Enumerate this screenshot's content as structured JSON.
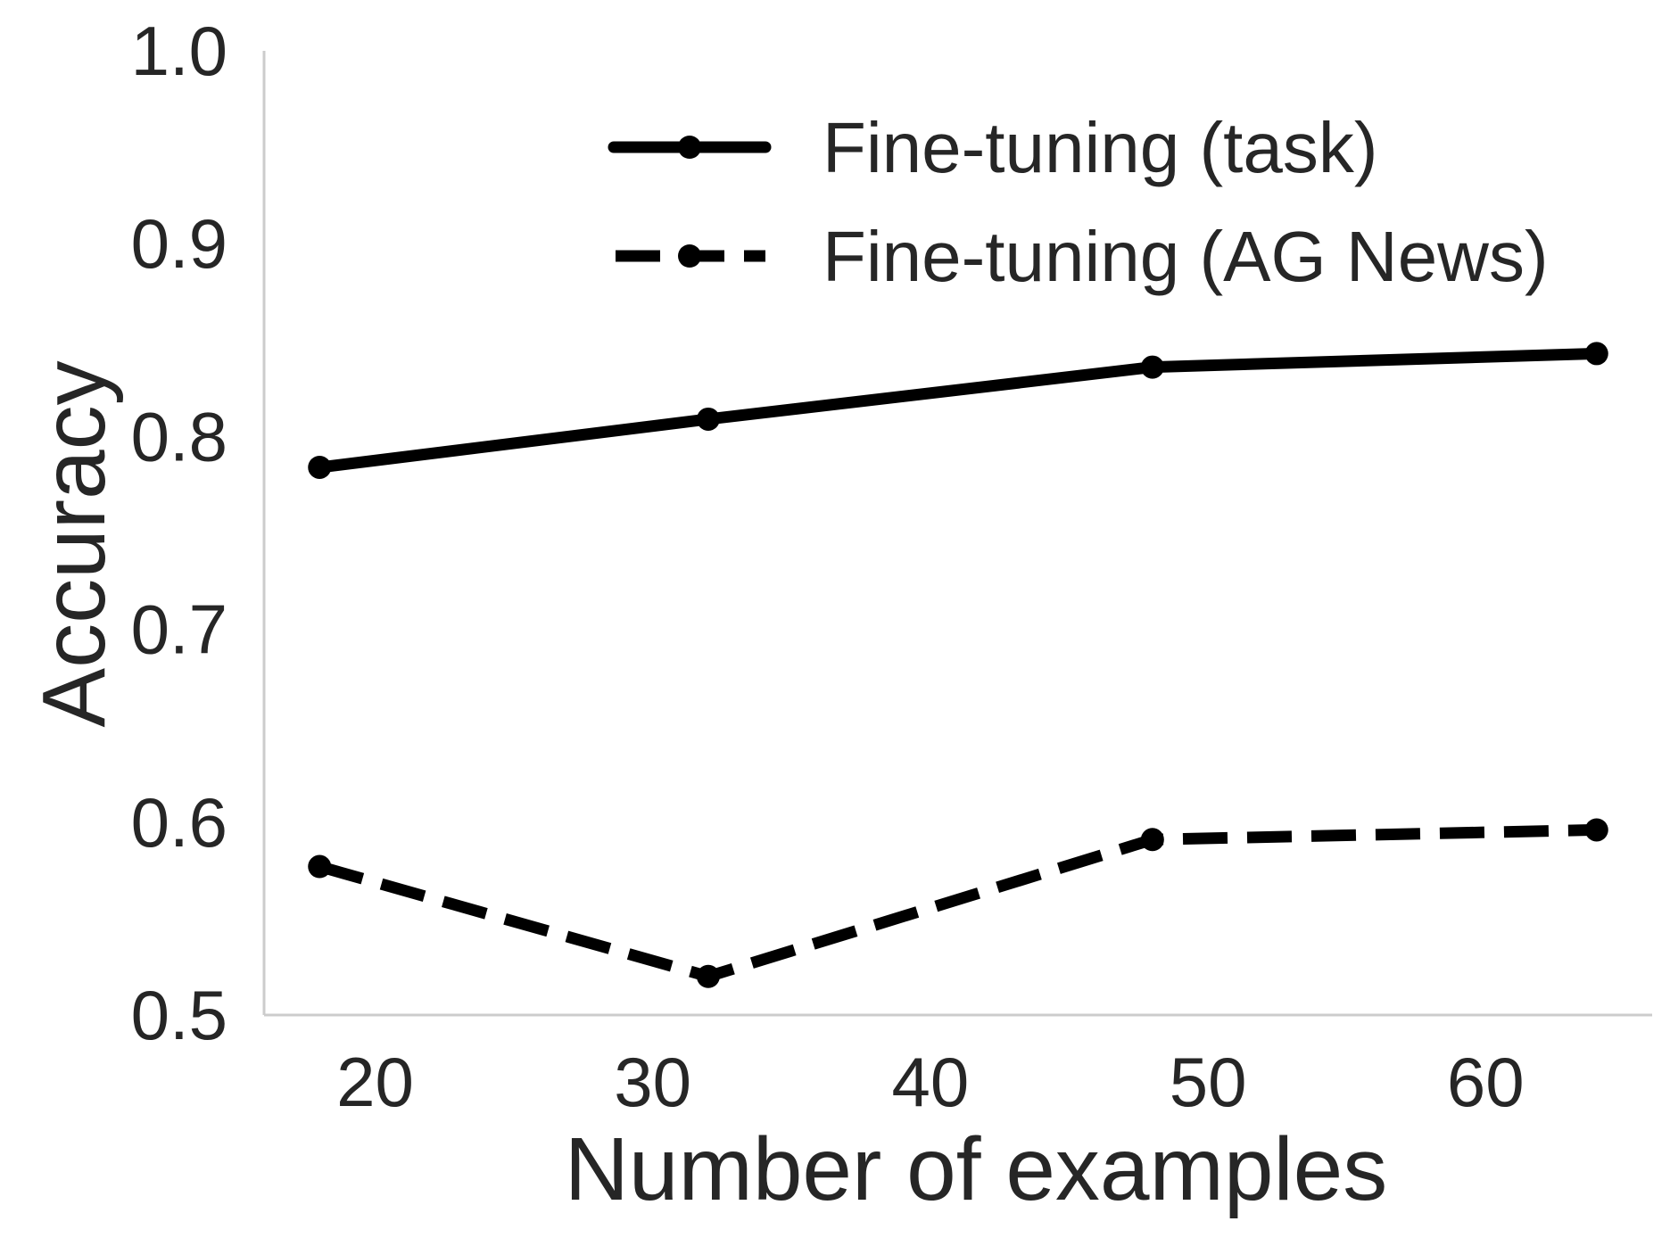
{
  "chart_data": {
    "type": "line",
    "title": "",
    "xlabel": "Number of examples",
    "ylabel": "Accuracy",
    "xlim": [
      16,
      66
    ],
    "ylim": [
      0.5,
      1.0
    ],
    "xticks": [
      20,
      30,
      40,
      50,
      60
    ],
    "yticks": [
      0.5,
      0.6,
      0.7,
      0.8,
      0.9,
      1.0
    ],
    "xtick_labels": [
      "20",
      "30",
      "40",
      "50",
      "60"
    ],
    "ytick_labels": [
      "0.5",
      "0.6",
      "0.7",
      "0.8",
      "0.9",
      "1.0"
    ],
    "grid": false,
    "legend_position": "top-right",
    "series": [
      {
        "name": "Fine-tuning (task)",
        "style": "solid",
        "color": "#000000",
        "x": [
          18,
          32,
          48,
          64
        ],
        "y": [
          0.784,
          0.809,
          0.836,
          0.843
        ]
      },
      {
        "name": "Fine-tuning (AG News)",
        "style": "dashed",
        "color": "#000000",
        "x": [
          18,
          32,
          48,
          64
        ],
        "y": [
          0.577,
          0.52,
          0.591,
          0.596
        ]
      }
    ],
    "axis_color": "#cccccc",
    "text_color": "#262626"
  }
}
